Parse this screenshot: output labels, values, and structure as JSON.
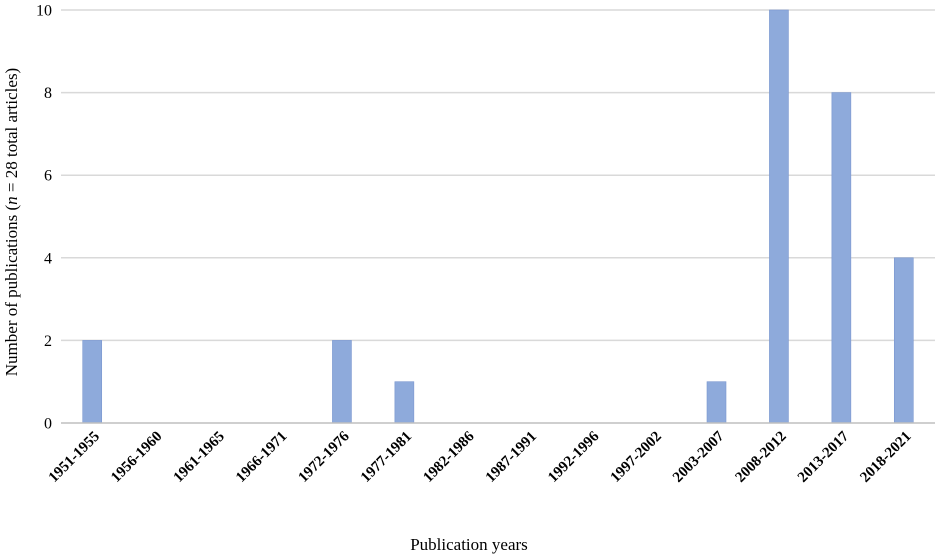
{
  "chart_data": {
    "type": "bar",
    "categories": [
      "1951-1955",
      "1956-1960",
      "1961-1965",
      "1966-1971",
      "1972-1976",
      "1977-1981",
      "1982-1986",
      "1987-1991",
      "1992-1996",
      "1997-2002",
      "2003-2007",
      "2008-2012",
      "2013-2017",
      "2018-2021"
    ],
    "values": [
      2,
      0,
      0,
      0,
      2,
      1,
      0,
      0,
      0,
      0,
      1,
      10,
      8,
      4
    ],
    "title": "",
    "xlabel": "Publication years",
    "ylabel_parts": [
      "Number of publications (",
      "n",
      " = 28 total articles)"
    ],
    "ylim": [
      0,
      10
    ],
    "yticks": [
      0,
      2,
      4,
      6,
      8,
      10
    ],
    "grid": true,
    "bar_color": "#8eaadb",
    "bar_edge_color": "#7a97cf",
    "grid_color": "#d9d9d9",
    "axis_color": "#bfbfbf"
  }
}
